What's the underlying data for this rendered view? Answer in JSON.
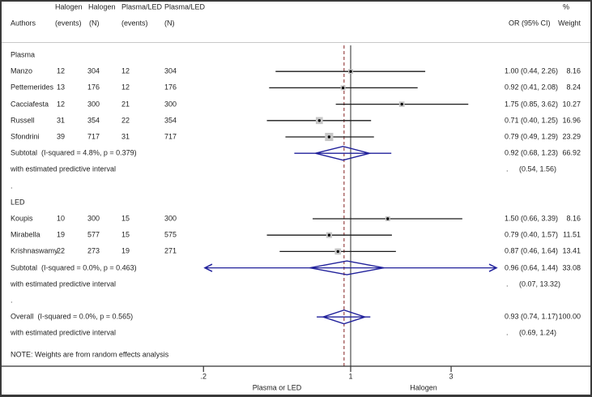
{
  "header": {
    "col_authors": "Authors",
    "col1_top": "Halogen",
    "col1_bot": "(events)",
    "col2_top": "Halogen",
    "col2_bot": "(N)",
    "col3_top": "Plasma/LED",
    "col3_bot": "(events)",
    "col4_top": "Plasma/LED",
    "col4_bot": "(N)",
    "col_or": "OR (95% CI)",
    "col_pct": "%",
    "col_weight": "Weight"
  },
  "note": "NOTE: Weights are from random effects analysis",
  "chart_data": {
    "type": "forest",
    "x_scale": "log",
    "null_value": 1,
    "overall_estimate_line": 0.93,
    "x_axis": {
      "ticks": [
        {
          "value": 0.2,
          "label": ".2"
        },
        {
          "value": 1,
          "label": "1"
        },
        {
          "value": 3,
          "label": "3"
        }
      ],
      "left_direction_label": "Plasma or LED",
      "right_direction_label": "Halogen"
    },
    "groups": [
      {
        "label": "Plasma",
        "studies": [
          {
            "author": "Manzo",
            "halogen_events": "12",
            "halogen_n": "304",
            "plasma_led_events": "12",
            "plasma_led_n": "304",
            "or": 1.0,
            "ci_low": 0.44,
            "ci_high": 2.26,
            "or_ci_text": "1.00 (0.44, 2.26)",
            "weight_pct": 8.16,
            "weight_text": "8.16"
          },
          {
            "author": "Pettemerides",
            "halogen_events": "13",
            "halogen_n": "176",
            "plasma_led_events": "12",
            "plasma_led_n": "176",
            "or": 0.92,
            "ci_low": 0.41,
            "ci_high": 2.08,
            "or_ci_text": "0.92 (0.41, 2.08)",
            "weight_pct": 8.24,
            "weight_text": "8.24"
          },
          {
            "author": "Cacciafesta",
            "halogen_events": "12",
            "halogen_n": "300",
            "plasma_led_events": "21",
            "plasma_led_n": "300",
            "or": 1.75,
            "ci_low": 0.85,
            "ci_high": 3.62,
            "or_ci_text": "1.75 (0.85, 3.62)",
            "weight_pct": 10.27,
            "weight_text": "10.27"
          },
          {
            "author": "Russell",
            "halogen_events": "31",
            "halogen_n": "354",
            "plasma_led_events": "22",
            "plasma_led_n": "354",
            "or": 0.71,
            "ci_low": 0.4,
            "ci_high": 1.25,
            "or_ci_text": "0.71 (0.40, 1.25)",
            "weight_pct": 16.96,
            "weight_text": "16.96"
          },
          {
            "author": "Sfondrini",
            "halogen_events": "39",
            "halogen_n": "717",
            "plasma_led_events": "31",
            "plasma_led_n": "717",
            "or": 0.79,
            "ci_low": 0.49,
            "ci_high": 1.29,
            "or_ci_text": "0.79 (0.49, 1.29)",
            "weight_pct": 23.29,
            "weight_text": "23.29"
          }
        ],
        "subtotal": {
          "label": "Subtotal  (I-squared = 4.8%, p = 0.379)",
          "or": 0.92,
          "ci_low": 0.68,
          "ci_high": 1.23,
          "or_ci_text": "0.92 (0.68, 1.23)",
          "weight_text": "66.92"
        },
        "predictive": {
          "label": "with estimated predictive interval",
          "low": 0.54,
          "high": 1.56,
          "ci_text": "(0.54, 1.56)",
          "clipped": false
        }
      },
      {
        "label": "LED",
        "studies": [
          {
            "author": "Koupis",
            "halogen_events": "10",
            "halogen_n": "300",
            "plasma_led_events": "15",
            "plasma_led_n": "300",
            "or": 1.5,
            "ci_low": 0.66,
            "ci_high": 3.39,
            "or_ci_text": "1.50 (0.66, 3.39)",
            "weight_pct": 8.16,
            "weight_text": "8.16"
          },
          {
            "author": "Mirabella",
            "halogen_events": "19",
            "halogen_n": "577",
            "plasma_led_events": "15",
            "plasma_led_n": "575",
            "or": 0.79,
            "ci_low": 0.4,
            "ci_high": 1.57,
            "or_ci_text": "0.79 (0.40, 1.57)",
            "weight_pct": 11.51,
            "weight_text": "11.51"
          },
          {
            "author": "Krishnaswamy",
            "halogen_events": "22",
            "halogen_n": "273",
            "plasma_led_events": "19",
            "plasma_led_n": "271",
            "or": 0.87,
            "ci_low": 0.46,
            "ci_high": 1.64,
            "or_ci_text": "0.87 (0.46, 1.64)",
            "weight_pct": 13.41,
            "weight_text": "13.41"
          }
        ],
        "subtotal": {
          "label": "Subtotal  (I-squared = 0.0%, p = 0.463)",
          "or": 0.96,
          "ci_low": 0.64,
          "ci_high": 1.44,
          "or_ci_text": "0.96 (0.64, 1.44)",
          "weight_text": "33.08"
        },
        "predictive": {
          "label": "with estimated predictive interval",
          "low": 0.07,
          "high": 13.32,
          "ci_text": "(0.07, 13.32)",
          "clipped": true
        }
      }
    ],
    "overall": {
      "label": "Overall  (I-squared = 0.0%, p = 0.565)",
      "or": 0.93,
      "ci_low": 0.74,
      "ci_high": 1.17,
      "or_ci_text": "0.93 (0.74, 1.17)",
      "weight_text": "100.00"
    },
    "overall_predictive": {
      "label": "with estimated predictive interval",
      "low": 0.69,
      "high": 1.24,
      "ci_text": "(0.69, 1.24)",
      "clipped": false
    },
    "spacer_dot": "."
  },
  "colors": {
    "diamond": "#21219b",
    "dashed_line": "#a05454",
    "null_line": "#707070",
    "ci_line": "#1a1a1a",
    "marker_fill": "#c6c6c6",
    "marker_dot": "#000000",
    "separator": "#c9c9c9",
    "axis": "#333333",
    "border": "#3a3a3a",
    "text": "#1f1f1f"
  }
}
